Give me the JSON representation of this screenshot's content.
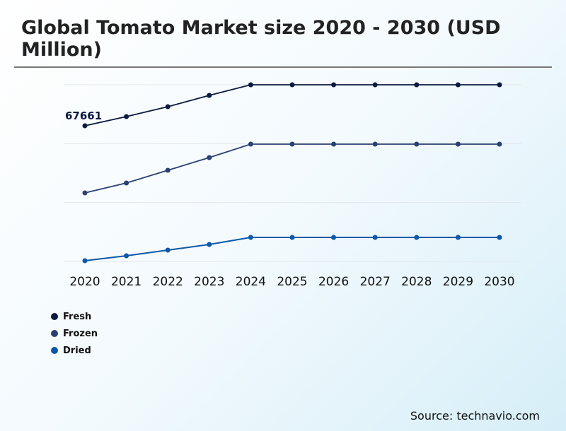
{
  "chart_data": {
    "type": "line",
    "title": "Global Tomato Market size 2020 - 2030 (USD Million)",
    "x": [
      "2020",
      "2021",
      "2022",
      "2023",
      "2024",
      "2025",
      "2026",
      "2027",
      "2028",
      "2029",
      "2030"
    ],
    "ylim": [
      0,
      88100
    ],
    "grid": true,
    "legend_position": "bottom-left",
    "series": [
      {
        "name": "Fresh",
        "color": "#0c1a40",
        "values": [
          67661,
          72240,
          77176,
          82814,
          88100,
          88100,
          88100,
          88100,
          88100,
          88100,
          88100
        ]
      },
      {
        "name": "Frozen",
        "color": "#2b3f72",
        "values": [
          34183,
          39116,
          45460,
          51803,
          58498,
          58498,
          58498,
          58498,
          58498,
          58498,
          58498
        ]
      },
      {
        "name": "Dried",
        "color": "#0a58a8",
        "values": [
          352,
          2819,
          5638,
          8458,
          11982,
          11982,
          11982,
          11982,
          11982,
          11982,
          11982
        ]
      }
    ],
    "annotations": [
      {
        "series": "Fresh",
        "x": "2020",
        "text": "67661"
      }
    ]
  },
  "source": "Source: technavio.com"
}
